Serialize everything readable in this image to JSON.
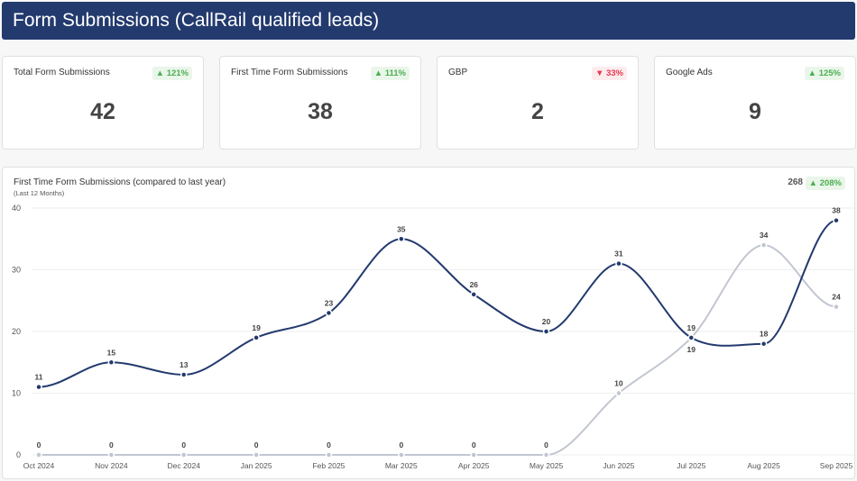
{
  "header": {
    "title": "Form Submissions (CallRail qualified leads)"
  },
  "cards": [
    {
      "title": "Total Form Submissions",
      "value": "42",
      "change": "121%",
      "direction": "up"
    },
    {
      "title": "First Time Form Submissions",
      "value": "38",
      "change": "111%",
      "direction": "up"
    },
    {
      "title": "GBP",
      "value": "2",
      "change": "33%",
      "direction": "down"
    },
    {
      "title": "Google Ads",
      "value": "9",
      "change": "125%",
      "direction": "up"
    }
  ],
  "chart_panel": {
    "title": "First Time Form Submissions (compared to last year)",
    "subtitle": "(Last 12 Months)",
    "total": "268",
    "change": "208%"
  },
  "chart_data": {
    "type": "line",
    "categories": [
      "Oct 2024",
      "Nov 2024",
      "Dec 2024",
      "Jan 2025",
      "Feb 2025",
      "Mar 2025",
      "Apr 2025",
      "May 2025",
      "Jun 2025",
      "Jul 2025",
      "Aug 2025",
      "Sep 2025"
    ],
    "series": [
      {
        "values": [
          11,
          15,
          13,
          19,
          23,
          35,
          26,
          20,
          31,
          19,
          18,
          38
        ],
        "color": "#233a6e"
      },
      {
        "values": [
          0,
          0,
          0,
          0,
          0,
          0,
          0,
          0,
          10,
          19,
          34,
          24
        ],
        "color": "#c2c6d0"
      }
    ],
    "yticks": [
      0,
      10,
      20,
      30,
      40
    ],
    "ylim": [
      0,
      40
    ],
    "grid": true,
    "smooth": true
  }
}
